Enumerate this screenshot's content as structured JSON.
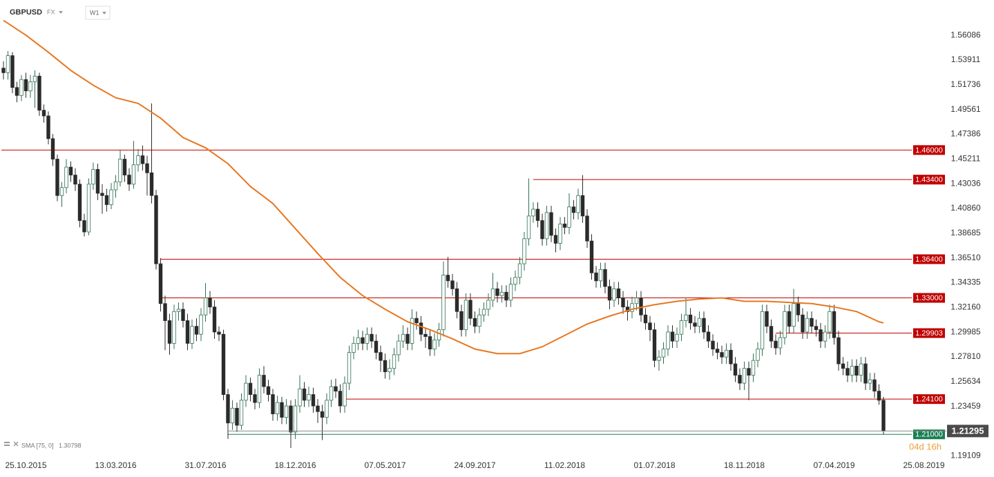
{
  "chart_data": {
    "type": "candlestick",
    "symbol": "GBPUSD",
    "market": "FX",
    "timeframe": "W1",
    "countdown": "04d 16h",
    "up_color": "#ffffff",
    "up_border": "#2f6f52",
    "down_color": "#2b2b2b",
    "ylim": [
      1.1895,
      1.5895
    ],
    "yticks": [
      1.56086,
      1.53911,
      1.51736,
      1.49561,
      1.47386,
      1.45211,
      1.43036,
      {
        "value": 1.4086,
        "label": "1.40860"
      },
      1.38685,
      {
        "value": 1.3651,
        "label": "1.36510"
      },
      1.34335,
      {
        "value": 1.3216,
        "label": "1.32160"
      },
      1.29985,
      {
        "value": 1.2781,
        "label": "1.27810"
      },
      1.25634,
      1.23459,
      1.19109
    ],
    "levels": [
      {
        "value": 1.46,
        "label": "1.46000",
        "color": "#c00000"
      },
      {
        "value": 1.434,
        "label": "1.43400",
        "color": "#c00000"
      },
      {
        "value": 1.364,
        "label": "1.36400",
        "color": "#c00000"
      },
      {
        "value": 1.33,
        "label": "1.33000",
        "color": "#c00000"
      },
      {
        "value": 1.29903,
        "label": "1.29903",
        "color": "#c00000"
      },
      {
        "value": 1.241,
        "label": "1.24100",
        "color": "#c00000"
      },
      {
        "value": 1.21,
        "label": "1.21000",
        "color": "#1a7f55"
      }
    ],
    "categories": [
      null,
      null,
      null,
      null,
      null,
      "25.10.2015",
      null,
      null,
      null,
      null,
      null,
      null,
      null,
      null,
      null,
      null,
      null,
      null,
      null,
      null,
      null,
      null,
      null,
      null,
      null,
      "13.03.2016",
      null,
      null,
      null,
      null,
      null,
      null,
      null,
      null,
      null,
      null,
      null,
      null,
      null,
      null,
      null,
      null,
      null,
      null,
      null,
      "31.07.2016",
      null,
      null,
      null,
      null,
      null,
      null,
      null,
      null,
      null,
      null,
      null,
      null,
      null,
      null,
      null,
      null,
      null,
      null,
      null,
      "18.12.2016",
      null,
      null,
      null,
      null,
      null,
      null,
      null,
      null,
      null,
      null,
      null,
      null,
      null,
      null,
      null,
      null,
      null,
      null,
      null,
      "07.05.2017",
      null,
      null,
      null,
      null,
      null,
      null,
      null,
      null,
      null,
      null,
      null,
      null,
      null,
      null,
      null,
      null,
      null,
      null,
      null,
      "24.09.2017",
      null,
      null,
      null,
      null,
      null,
      null,
      null,
      null,
      null,
      null,
      null,
      null,
      null,
      null,
      null,
      null,
      null,
      null,
      null,
      "11.02.2018",
      null,
      null,
      null,
      null,
      null,
      null,
      null,
      null,
      null,
      null,
      null,
      null,
      null,
      null,
      null,
      null,
      null,
      null,
      null,
      "01.07.2018",
      null,
      null,
      null,
      null,
      null,
      null,
      null,
      null,
      null,
      null,
      null,
      null,
      null,
      null,
      null,
      null,
      null,
      null,
      null,
      "18.11.2018",
      null,
      null,
      null,
      null,
      null,
      null,
      null,
      null,
      null,
      null,
      null,
      null,
      null,
      null,
      null,
      null,
      null,
      null,
      null,
      "07.04.2019",
      null,
      null,
      null,
      null,
      null,
      null,
      null,
      null,
      null,
      null,
      null,
      null,
      null,
      null,
      null,
      null,
      null,
      null,
      null,
      "25.08.2019"
    ],
    "open": [
      1.532,
      1.528,
      1.543,
      1.515,
      1.508,
      1.522,
      1.512,
      1.52,
      1.525,
      1.495,
      1.49,
      1.47,
      1.452,
      1.42,
      1.427,
      1.445,
      1.438,
      1.43,
      1.398,
      1.388,
      1.43,
      1.443,
      1.422,
      1.42,
      1.412,
      1.425,
      1.432,
      1.452,
      1.438,
      1.43,
      1.447,
      1.455,
      1.448,
      1.44,
      1.42,
      1.36,
      1.325,
      1.31,
      1.29,
      1.318,
      1.32,
      1.31,
      1.29,
      1.305,
      1.298,
      1.315,
      1.33,
      1.322,
      1.3,
      1.298,
      1.245,
      1.22,
      1.233,
      1.218,
      1.24,
      1.255,
      1.245,
      1.238,
      1.262,
      1.252,
      1.245,
      1.228,
      1.238,
      1.225,
      1.235,
      1.212,
      1.235,
      1.25,
      1.24,
      1.245,
      1.235,
      1.23,
      1.225,
      1.24,
      1.252,
      1.248,
      1.235,
      1.255,
      1.282,
      1.29,
      1.295,
      1.29,
      1.298,
      1.292,
      1.282,
      1.275,
      1.265,
      1.268,
      1.28,
      1.292,
      1.298,
      1.29,
      1.312,
      1.308,
      1.298,
      1.296,
      1.285,
      1.293,
      1.302,
      1.35,
      1.345,
      1.338,
      1.318,
      1.302,
      1.328,
      1.312,
      1.305,
      1.315,
      1.32,
      1.328,
      1.338,
      1.332,
      1.335,
      1.328,
      1.342,
      1.348,
      1.36,
      1.382,
      1.402,
      1.408,
      1.398,
      1.382,
      1.405,
      1.385,
      1.378,
      1.395,
      1.392,
      1.41,
      1.405,
      1.42,
      1.402,
      1.38,
      1.352,
      1.345,
      1.355,
      1.34,
      1.328,
      1.338,
      1.33,
      1.322,
      1.318,
      1.325,
      1.33,
      1.315,
      1.308,
      1.302,
      1.275,
      1.278,
      1.285,
      1.3,
      1.292,
      1.298,
      1.31,
      1.315,
      1.308,
      1.305,
      1.312,
      1.3,
      1.292,
      1.285,
      1.282,
      1.278,
      1.284,
      1.272,
      1.262,
      1.255,
      1.268,
      1.262,
      1.275,
      1.285,
      1.318,
      1.305,
      1.292,
      1.286,
      1.295,
      1.318,
      1.305,
      1.325,
      1.315,
      1.3,
      1.312,
      1.305,
      1.302,
      1.292,
      1.3,
      1.318,
      1.295,
      1.272,
      1.268,
      1.262,
      1.27,
      1.262,
      1.272,
      1.255,
      1.258,
      1.248,
      1.24,
      null,
      null,
      null,
      null,
      null,
      null,
      null,
      null,
      null
    ],
    "high": [
      1.538,
      1.547,
      1.546,
      1.52,
      1.526,
      1.528,
      1.526,
      1.53,
      1.528,
      1.5,
      1.494,
      1.474,
      1.456,
      1.432,
      1.452,
      1.45,
      1.444,
      1.434,
      1.404,
      1.435,
      1.449,
      1.448,
      1.43,
      1.426,
      1.431,
      1.438,
      1.46,
      1.456,
      1.444,
      1.468,
      1.461,
      1.464,
      1.455,
      1.501,
      1.425,
      1.365,
      1.332,
      1.316,
      1.324,
      1.326,
      1.326,
      1.316,
      1.311,
      1.312,
      1.321,
      1.343,
      1.336,
      1.328,
      1.305,
      1.302,
      1.25,
      1.24,
      1.238,
      1.246,
      1.262,
      1.26,
      1.25,
      1.268,
      1.27,
      1.258,
      1.25,
      1.244,
      1.243,
      1.241,
      1.24,
      1.241,
      1.262,
      1.256,
      1.252,
      1.251,
      1.241,
      1.236,
      1.246,
      1.258,
      1.259,
      1.254,
      1.261,
      1.288,
      1.296,
      1.302,
      1.301,
      1.304,
      1.304,
      1.298,
      1.288,
      1.281,
      1.276,
      1.286,
      1.298,
      1.306,
      1.304,
      1.32,
      1.318,
      1.314,
      1.304,
      1.302,
      1.299,
      1.308,
      1.362,
      1.366,
      1.351,
      1.344,
      1.324,
      1.334,
      1.334,
      1.318,
      1.321,
      1.326,
      1.334,
      1.352,
      1.344,
      1.341,
      1.341,
      1.348,
      1.354,
      1.366,
      1.388,
      1.435,
      1.414,
      1.414,
      1.404,
      1.411,
      1.411,
      1.391,
      1.401,
      1.401,
      1.422,
      1.416,
      1.426,
      1.438,
      1.408,
      1.386,
      1.358,
      1.361,
      1.361,
      1.346,
      1.344,
      1.344,
      1.336,
      1.328,
      1.331,
      1.336,
      1.336,
      1.321,
      1.314,
      1.308,
      1.284,
      1.291,
      1.306,
      1.306,
      1.304,
      1.316,
      1.33,
      1.321,
      1.314,
      1.318,
      1.318,
      1.306,
      1.298,
      1.291,
      1.288,
      1.29,
      1.29,
      1.278,
      1.268,
      1.274,
      1.274,
      1.281,
      1.291,
      1.324,
      1.324,
      1.311,
      1.298,
      1.301,
      1.324,
      1.324,
      1.338,
      1.331,
      1.321,
      1.318,
      1.318,
      1.311,
      1.308,
      1.306,
      1.324,
      1.324,
      1.301,
      1.278,
      1.274,
      1.276,
      1.276,
      1.278,
      1.278,
      1.264,
      1.264,
      1.254,
      1.243,
      null,
      null,
      null,
      null,
      null,
      null,
      null,
      null,
      null
    ],
    "low": [
      1.522,
      1.522,
      1.51,
      1.502,
      1.503,
      1.506,
      1.506,
      1.497,
      1.49,
      1.484,
      1.465,
      1.446,
      1.415,
      1.41,
      1.422,
      1.432,
      1.424,
      1.392,
      1.384,
      1.385,
      1.425,
      1.416,
      1.404,
      1.406,
      1.408,
      1.418,
      1.428,
      1.432,
      1.424,
      1.426,
      1.441,
      1.442,
      1.42,
      1.413,
      1.355,
      1.318,
      1.284,
      1.28,
      1.285,
      1.31,
      1.304,
      1.284,
      1.285,
      1.292,
      1.292,
      1.309,
      1.316,
      1.294,
      1.292,
      1.24,
      1.206,
      1.214,
      1.212,
      1.214,
      1.234,
      1.239,
      1.232,
      1.233,
      1.246,
      1.239,
      1.222,
      1.222,
      1.219,
      1.219,
      1.198,
      1.206,
      1.229,
      1.234,
      1.234,
      1.229,
      1.22,
      1.205,
      1.219,
      1.234,
      1.242,
      1.229,
      1.229,
      1.249,
      1.276,
      1.284,
      1.284,
      1.284,
      1.286,
      1.276,
      1.265,
      1.259,
      1.258,
      1.262,
      1.274,
      1.286,
      1.284,
      1.284,
      1.302,
      1.292,
      1.286,
      1.279,
      1.279,
      1.287,
      1.296,
      1.339,
      1.332,
      1.312,
      1.296,
      1.296,
      1.306,
      1.299,
      1.299,
      1.309,
      1.314,
      1.322,
      1.326,
      1.326,
      1.322,
      1.322,
      1.336,
      1.342,
      1.354,
      1.376,
      1.396,
      1.392,
      1.376,
      1.376,
      1.379,
      1.37,
      1.372,
      1.386,
      1.386,
      1.399,
      1.399,
      1.396,
      1.374,
      1.346,
      1.339,
      1.339,
      1.334,
      1.32,
      1.322,
      1.324,
      1.316,
      1.31,
      1.312,
      1.319,
      1.309,
      1.302,
      1.292,
      1.269,
      1.266,
      1.272,
      1.279,
      1.286,
      1.286,
      1.292,
      1.304,
      1.302,
      1.299,
      1.299,
      1.294,
      1.286,
      1.279,
      1.276,
      1.272,
      1.272,
      1.266,
      1.256,
      1.249,
      1.249,
      1.24,
      1.256,
      1.269,
      1.279,
      1.299,
      1.286,
      1.28,
      1.28,
      1.289,
      1.299,
      1.299,
      1.309,
      1.294,
      1.294,
      1.299,
      1.296,
      1.286,
      1.286,
      1.294,
      1.289,
      1.266,
      1.262,
      1.256,
      1.256,
      1.256,
      1.256,
      1.249,
      1.249,
      1.242,
      1.236,
      1.21,
      null,
      null,
      null,
      null,
      null,
      null,
      null,
      null,
      null
    ],
    "close": [
      1.528,
      1.543,
      1.515,
      1.508,
      1.522,
      1.512,
      1.52,
      1.525,
      1.495,
      1.49,
      1.47,
      1.452,
      1.42,
      1.427,
      1.445,
      1.438,
      1.43,
      1.398,
      1.388,
      1.43,
      1.443,
      1.422,
      1.42,
      1.412,
      1.425,
      1.432,
      1.452,
      1.438,
      1.43,
      1.447,
      1.455,
      1.448,
      1.44,
      1.42,
      1.36,
      1.325,
      1.31,
      1.29,
      1.318,
      1.32,
      1.31,
      1.29,
      1.305,
      1.298,
      1.315,
      1.33,
      1.322,
      1.3,
      1.298,
      1.245,
      1.22,
      1.233,
      1.218,
      1.24,
      1.255,
      1.245,
      1.238,
      1.262,
      1.252,
      1.245,
      1.228,
      1.238,
      1.225,
      1.235,
      1.212,
      1.235,
      1.25,
      1.24,
      1.245,
      1.235,
      1.23,
      1.225,
      1.24,
      1.252,
      1.248,
      1.235,
      1.255,
      1.282,
      1.29,
      1.295,
      1.29,
      1.298,
      1.292,
      1.282,
      1.275,
      1.265,
      1.268,
      1.28,
      1.292,
      1.298,
      1.29,
      1.312,
      1.308,
      1.298,
      1.296,
      1.285,
      1.293,
      1.302,
      1.35,
      1.345,
      1.338,
      1.318,
      1.302,
      1.328,
      1.312,
      1.305,
      1.315,
      1.32,
      1.328,
      1.338,
      1.332,
      1.335,
      1.328,
      1.342,
      1.348,
      1.36,
      1.382,
      1.402,
      1.408,
      1.398,
      1.382,
      1.405,
      1.385,
      1.378,
      1.395,
      1.392,
      1.41,
      1.405,
      1.42,
      1.402,
      1.38,
      1.352,
      1.345,
      1.355,
      1.34,
      1.328,
      1.338,
      1.33,
      1.322,
      1.318,
      1.325,
      1.33,
      1.315,
      1.308,
      1.302,
      1.275,
      1.278,
      1.285,
      1.3,
      1.292,
      1.298,
      1.31,
      1.315,
      1.308,
      1.305,
      1.312,
      1.3,
      1.292,
      1.285,
      1.282,
      1.278,
      1.284,
      1.272,
      1.262,
      1.255,
      1.268,
      1.262,
      1.275,
      1.285,
      1.318,
      1.305,
      1.292,
      1.286,
      1.295,
      1.318,
      1.305,
      1.325,
      1.315,
      1.3,
      1.312,
      1.305,
      1.302,
      1.292,
      1.3,
      1.318,
      1.295,
      1.272,
      1.268,
      1.262,
      1.27,
      1.262,
      1.272,
      1.255,
      1.258,
      1.248,
      1.24,
      1.21295,
      null,
      null,
      null,
      null,
      null,
      null,
      null,
      null,
      null
    ],
    "sma": {
      "name": "SMA [75, 0]",
      "color": "#e8761e",
      "x": [
        0,
        5,
        10,
        15,
        20,
        25,
        30,
        35,
        40,
        45,
        50,
        55,
        60,
        65,
        70,
        75,
        80,
        85,
        90,
        95,
        100,
        105,
        110,
        115,
        120,
        125,
        130,
        135,
        140,
        145,
        150,
        155,
        160,
        165,
        170,
        175,
        180,
        185,
        190,
        195,
        196
      ],
      "values": [
        1.574,
        1.561,
        1.546,
        1.53,
        1.517,
        1.506,
        1.501,
        1.488,
        1.471,
        1.462,
        1.448,
        1.428,
        1.413,
        1.391,
        1.369,
        1.348,
        1.332,
        1.32,
        1.309,
        1.302,
        1.294,
        1.285,
        1.281,
        1.281,
        1.287,
        1.297,
        1.307,
        1.314,
        1.32,
        1.324,
        1.327,
        1.329,
        1.33,
        1.327,
        1.327,
        1.326,
        1.325,
        1.322,
        1.318,
        1.309,
        1.30798
      ]
    }
  }
}
